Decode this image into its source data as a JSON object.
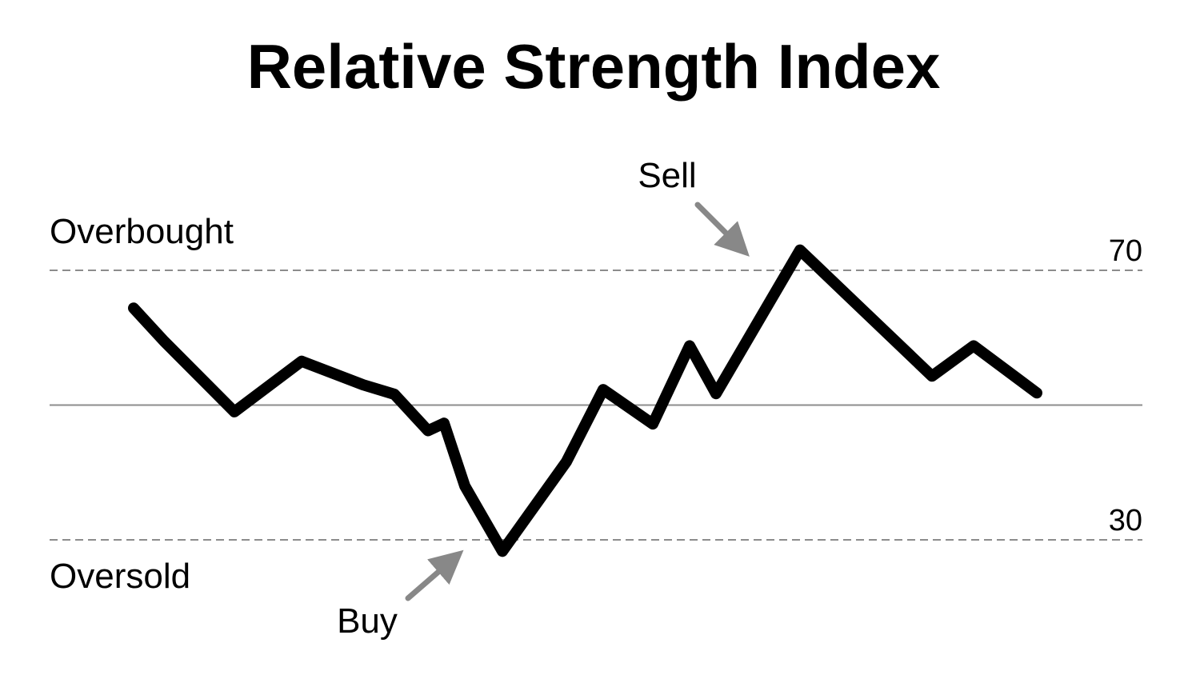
{
  "chart_data": {
    "type": "line",
    "title": "Relative Strength Index",
    "ylim": [
      30,
      70
    ],
    "center_line": 50,
    "grid": false,
    "levels": [
      {
        "value": 70,
        "label": "70",
        "zone_label": "Overbought",
        "style": "dashed"
      },
      {
        "value": 30,
        "label": "30",
        "zone_label": "Oversold",
        "style": "dashed"
      }
    ],
    "series": [
      {
        "values": [
          64.4,
          59.5,
          49.0,
          56.5,
          62.5,
          53.0,
          48.6,
          51.6,
          49.5,
          46.2,
          48.3,
          47.0,
          28.3,
          41.6,
          52.3,
          50.2,
          47.2,
          58.8,
          56.1,
          51.7,
          62.0,
          73.0,
          68.3,
          62.8,
          54.3,
          57.0,
          61.3,
          55.9,
          51.8
        ]
      }
    ],
    "annotations": [
      {
        "text": "Sell",
        "arrow_color": "#888888"
      },
      {
        "text": "Buy",
        "arrow_color": "#888888"
      }
    ],
    "colors": {
      "line": "#000000",
      "reference_lines": "#8c8c8c",
      "arrows": "#888888",
      "text": "#000000"
    }
  }
}
